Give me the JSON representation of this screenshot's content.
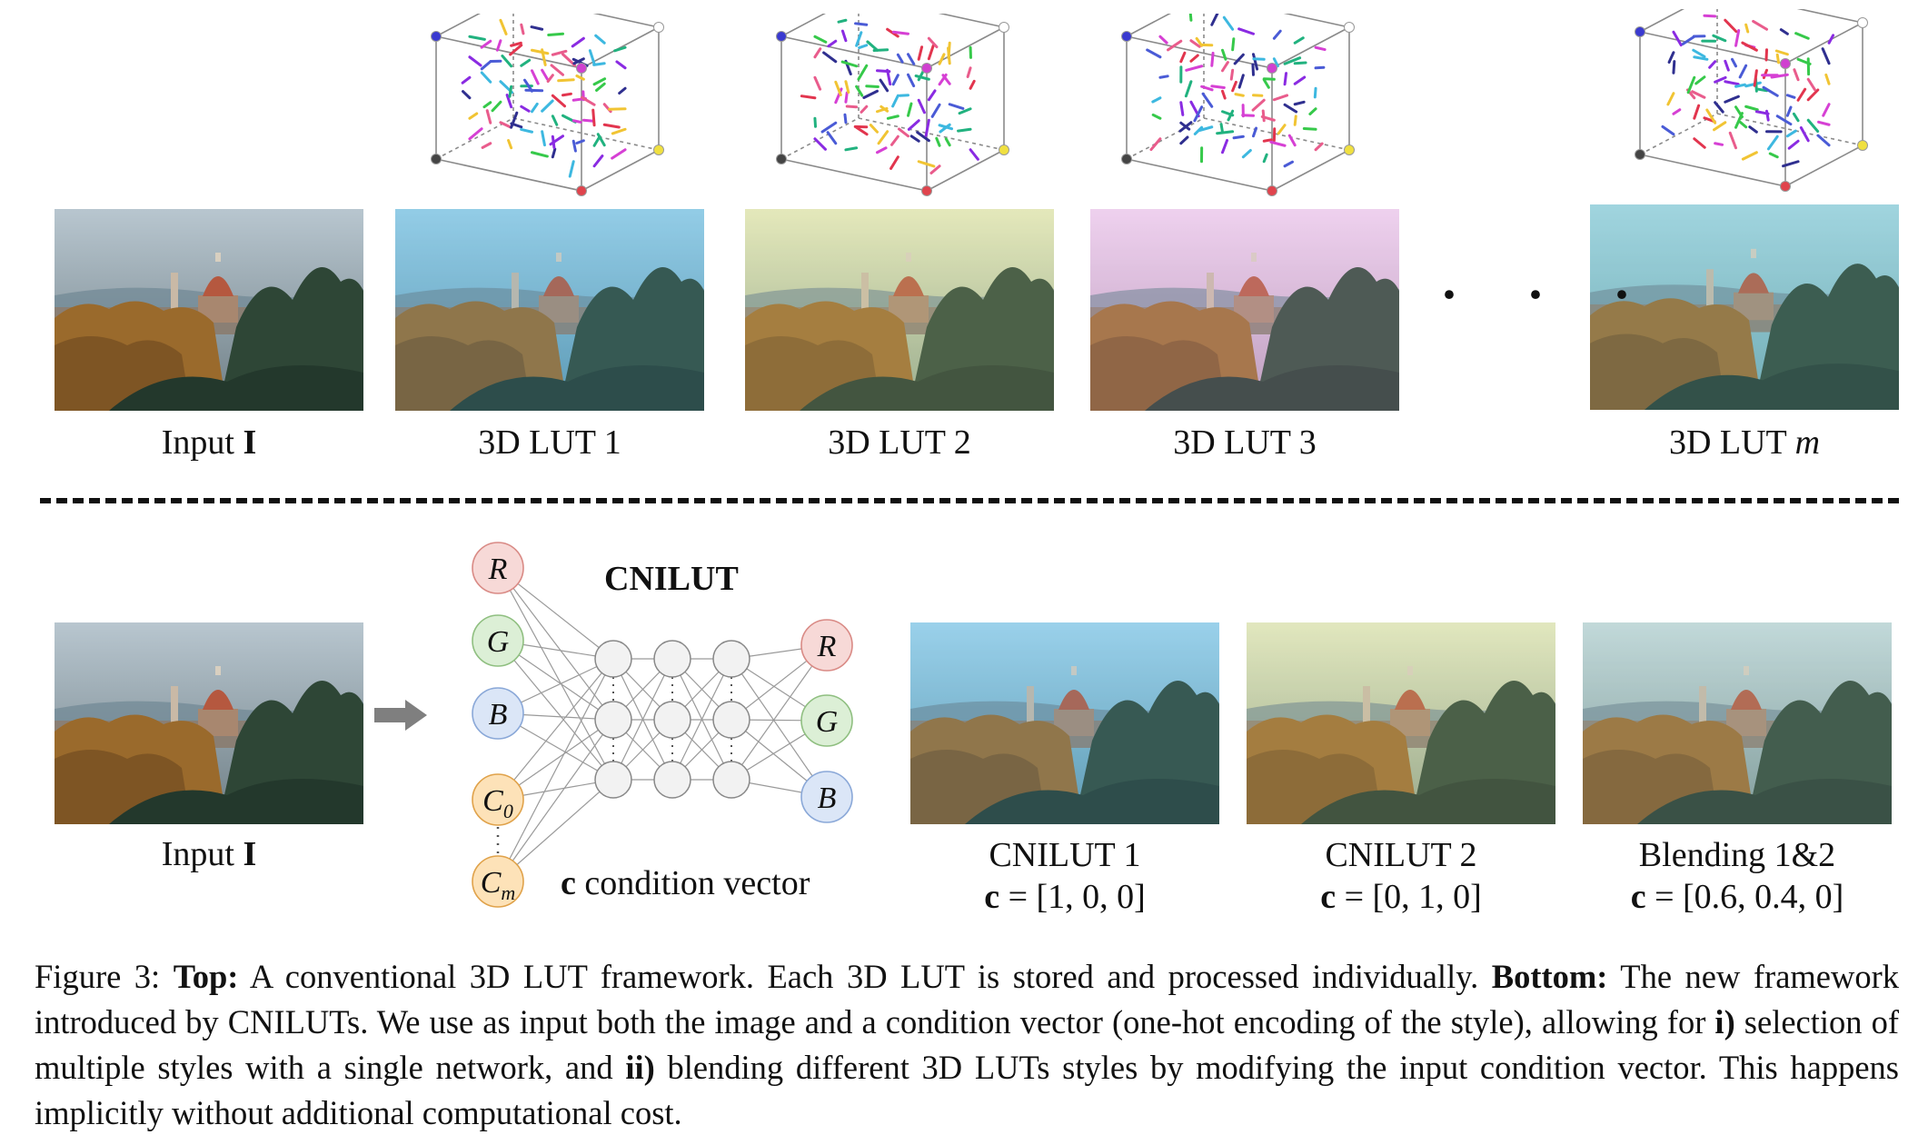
{
  "top": {
    "input_label": {
      "text": "Input ",
      "symbol": "I"
    },
    "lut_labels": [
      "3D LUT 1",
      "3D LUT 2",
      "3D LUT 3"
    ],
    "last_lut_label": {
      "text": "3D LUT ",
      "symbol": "m"
    },
    "ellipsis": "· · ·"
  },
  "bottom": {
    "input_label": {
      "text": "Input ",
      "symbol": "I"
    },
    "network_title": "CNILUT",
    "inputs": [
      "R",
      "G",
      "B",
      "C0",
      "Cm"
    ],
    "outputs": [
      "R",
      "G",
      "B"
    ],
    "condition_label": {
      "symbol": "c",
      "text": " condition vector"
    },
    "results": [
      {
        "title": "CNILUT 1",
        "vector_symbol": "c",
        "vector": " = [1, 0, 0]"
      },
      {
        "title": "CNILUT 2",
        "vector_symbol": "c",
        "vector": " = [0, 1, 0]"
      },
      {
        "title": "Blending 1&2",
        "vector_symbol": "c",
        "vector": " = [0.6, 0.4, 0]"
      }
    ]
  },
  "caption": {
    "prefix": "Figure 3: ",
    "top_bold": "Top:",
    "top_text": " A conventional 3D LUT framework. Each 3D LUT is stored and processed individually. ",
    "bottom_bold": "Bottom:",
    "bottom_text": " The new framework introduced by CNILUTs. We use as input both the image and a condition vector (one-hot encoding of the style), allowing for ",
    "i_bold": "i)",
    "i_text": " selection of multiple styles with a single network, and ",
    "ii_bold": "ii)",
    "ii_text": " blending different 3D LUTs styles by modifying the input condition vector. This happens implicitly without additional computational cost."
  },
  "colors": {
    "node_red": "#f7d9d7",
    "node_red_stroke": "#d98a85",
    "node_green": "#dcefd6",
    "node_green_stroke": "#8fbf80",
    "node_blue": "#dbe6f7",
    "node_blue_stroke": "#8aa8d8",
    "node_cond": "#fde2b8",
    "node_cond_stroke": "#e0a24a",
    "hidden": "#f2f2f2",
    "hidden_stroke": "#888888",
    "arrow": "#7f7f7f"
  },
  "styles": {
    "input": {
      "sky1": "#b8c6cf",
      "sky2": "#6f7f86",
      "tint": "none"
    },
    "lut1": {
      "sky1": "#9fd3ea",
      "sky2": "#5c95ae",
      "tint": "#5fb2d8"
    },
    "lut2": {
      "sky1": "#e7ebc2",
      "sky2": "#8da28d",
      "tint": "#d6dc9a"
    },
    "lut3": {
      "sky1": "#f1d7f1",
      "sky2": "#b79ab8",
      "tint": "#e2b5e6"
    },
    "lutm": {
      "sky1": "#a8d8e3",
      "sky2": "#6fa7b0",
      "tint": "#7fc6cf"
    },
    "c1": {
      "sky1": "#a6d8ef",
      "sky2": "#5f98ad",
      "tint": "#63b0d6"
    },
    "c2": {
      "sky1": "#e5ebc6",
      "sky2": "#8d9f8a",
      "tint": "#d2d99d"
    },
    "blend": {
      "sky1": "#c8dde0",
      "sky2": "#7b9596",
      "tint": "#a9c6bd"
    }
  }
}
